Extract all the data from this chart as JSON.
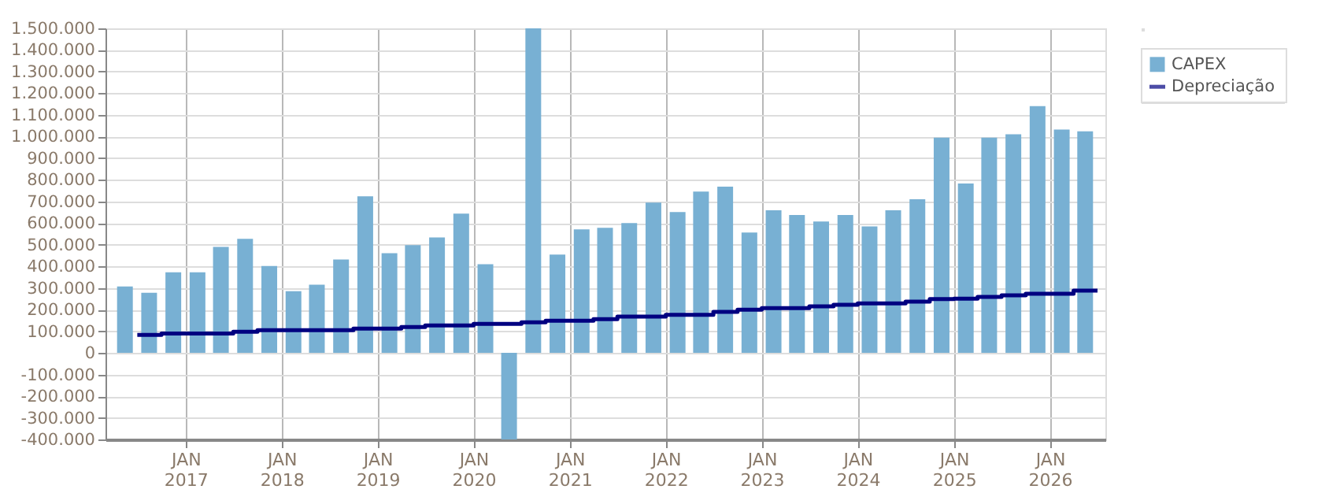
{
  "chart_data": {
    "type": "bar",
    "x": [
      "2016-05-15",
      "2016-08-15",
      "2016-11-15",
      "2017-02-15",
      "2017-05-15",
      "2017-08-15",
      "2017-11-15",
      "2018-02-15",
      "2018-05-15",
      "2018-08-15",
      "2018-11-15",
      "2019-02-15",
      "2019-05-15",
      "2019-08-15",
      "2019-11-15",
      "2020-02-15",
      "2020-05-15",
      "2020-08-15",
      "2020-11-15",
      "2021-02-15",
      "2021-05-15",
      "2021-08-15",
      "2021-11-15",
      "2022-02-15",
      "2022-05-15",
      "2022-08-15",
      "2022-11-15",
      "2023-02-15",
      "2023-05-15",
      "2023-08-15",
      "2023-11-15",
      "2024-02-15",
      "2024-05-15",
      "2024-08-15",
      "2024-11-15",
      "2025-02-15",
      "2025-05-15",
      "2025-08-15",
      "2025-11-15",
      "2026-02-15",
      "2026-05-15"
    ],
    "series": [
      {
        "name": "CAPEX",
        "color": "#78b0d3",
        "values": [
          307000,
          278000,
          373000,
          373000,
          490000,
          527000,
          402000,
          285000,
          315000,
          432000,
          724000,
          461000,
          498000,
          534000,
          644000,
          410000,
          -400000,
          1500000,
          454000,
          571000,
          578000,
          600000,
          695000,
          651000,
          746000,
          768000,
          556000,
          659000,
          637000,
          607000,
          637000,
          585000,
          659000,
          710000,
          995000,
          783000,
          995000,
          1010000,
          1141000,
          1032000,
          1024000
        ]
      },
      {
        "name": "Depreciação",
        "type": "step",
        "color": "#000080",
        "x": [
          "2016-07-01",
          "2016-10-01",
          "2017-01-01",
          "2017-04-01",
          "2017-07-01",
          "2017-10-01",
          "2018-01-01",
          "2018-04-01",
          "2018-07-01",
          "2018-10-01",
          "2019-01-01",
          "2019-04-01",
          "2019-07-01",
          "2019-10-01",
          "2020-01-01",
          "2020-04-01",
          "2020-07-01",
          "2020-10-01",
          "2021-01-01",
          "2021-04-01",
          "2021-07-01",
          "2021-10-01",
          "2022-01-01",
          "2022-04-01",
          "2022-07-01",
          "2022-10-01",
          "2023-01-01",
          "2023-04-01",
          "2023-07-01",
          "2023-10-01",
          "2024-01-01",
          "2024-04-01",
          "2024-07-01",
          "2024-10-01",
          "2025-01-01",
          "2025-04-01",
          "2025-07-01",
          "2025-10-01",
          "2026-01-01",
          "2026-04-01",
          "2026-07-01"
        ],
        "values": [
          83000,
          90000,
          90000,
          90000,
          98000,
          105000,
          105000,
          105000,
          105000,
          112000,
          112000,
          120000,
          127000,
          127000,
          134000,
          134000,
          141000,
          149000,
          149000,
          156000,
          168000,
          168000,
          176000,
          176000,
          190000,
          200000,
          207000,
          207000,
          215000,
          222000,
          229000,
          229000,
          237000,
          249000,
          251000,
          259000,
          266000,
          273000,
          273000,
          288000,
          288000
        ]
      }
    ],
    "xlim": [
      "2016-04-01",
      "2026-07-01"
    ],
    "xticks": [
      {
        "value": "2017-01-01",
        "label": "JAN 2017"
      },
      {
        "value": "2018-01-01",
        "label": "JAN 2018"
      },
      {
        "value": "2019-01-01",
        "label": "JAN 2019"
      },
      {
        "value": "2020-01-01",
        "label": "JAN 2020"
      },
      {
        "value": "2021-01-01",
        "label": "JAN 2021"
      },
      {
        "value": "2022-01-01",
        "label": "JAN 2022"
      },
      {
        "value": "2023-01-01",
        "label": "JAN 2023"
      },
      {
        "value": "2024-01-01",
        "label": "JAN 2024"
      },
      {
        "value": "2025-01-01",
        "label": "JAN 2025"
      },
      {
        "value": "2026-01-01",
        "label": "JAN 2026"
      }
    ],
    "ylim": [
      -400000,
      1500000
    ],
    "yticks": [
      {
        "value": -400000,
        "label": "-400.000"
      },
      {
        "value": -300000,
        "label": "-300.000"
      },
      {
        "value": -200000,
        "label": "-200.000"
      },
      {
        "value": -100000,
        "label": "-100.000"
      },
      0,
      {
        "value": 100000,
        "label": "100.000"
      },
      {
        "value": 200000,
        "label": "200.000"
      },
      {
        "value": 300000,
        "label": "300.000"
      },
      {
        "value": 400000,
        "label": "400.000"
      },
      {
        "value": 500000,
        "label": "500.000"
      },
      {
        "value": 600000,
        "label": "600.000"
      },
      {
        "value": 700000,
        "label": "700.000"
      },
      {
        "value": 800000,
        "label": "800.000"
      },
      {
        "value": 900000,
        "label": "900.000"
      },
      {
        "value": 1000000,
        "label": "1.000.000"
      },
      {
        "value": 1100000,
        "label": "1.100.000"
      },
      {
        "value": 1200000,
        "label": "1.200.000"
      },
      {
        "value": 1300000,
        "label": "1.300.000"
      },
      {
        "value": 1400000,
        "label": "1.400.000"
      },
      {
        "value": 1500000,
        "label": "1.500.000"
      }
    ],
    "grid": true,
    "legend": "top right",
    "line_style": "solid"
  }
}
